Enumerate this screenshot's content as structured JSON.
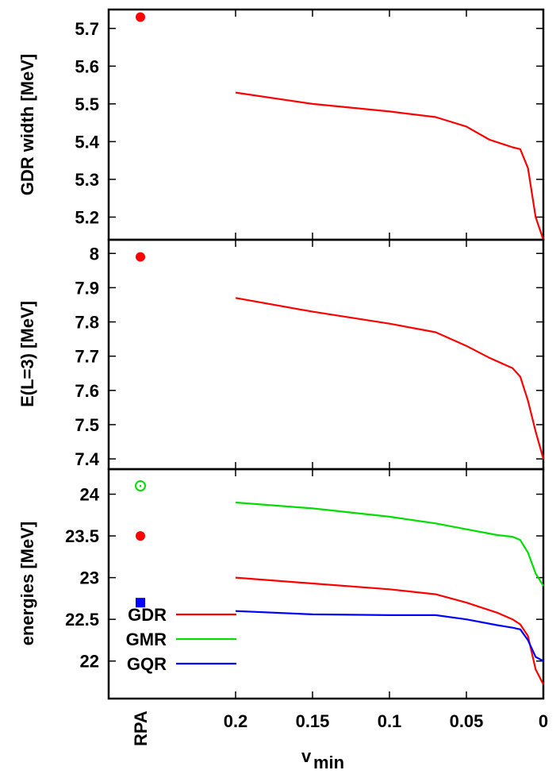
{
  "chart_data": [
    {
      "type": "line",
      "ylabel": "GDR width [MeV]",
      "ylim": [
        5.14,
        5.75
      ],
      "yticks": [
        5.2,
        5.3,
        5.4,
        5.5,
        5.6,
        5.7
      ],
      "xlim": [
        0.27,
        0
      ],
      "series": [
        {
          "color": "#ff0000",
          "x": [
            0.2,
            0.15,
            0.1,
            0.07,
            0.05,
            0.035,
            0.02,
            0.015,
            0.01,
            0.005,
            0.0
          ],
          "y": [
            5.53,
            5.5,
            5.48,
            5.465,
            5.44,
            5.405,
            5.385,
            5.38,
            5.33,
            5.2,
            5.14
          ]
        }
      ],
      "markers": [
        {
          "label": "RPA",
          "y": 5.73,
          "shape": "filled-circle",
          "color": "#ff0000"
        }
      ]
    },
    {
      "type": "line",
      "ylabel": "E(L=3) [MeV]",
      "ylim": [
        7.37,
        8.04
      ],
      "yticks": [
        7.4,
        7.5,
        7.6,
        7.7,
        7.8,
        7.9,
        8.0
      ],
      "ytick_labels": [
        "7.4",
        "7.5",
        "7.6",
        "7.7",
        "7.8",
        "7.9",
        "8"
      ],
      "xlim": [
        0.27,
        0
      ],
      "series": [
        {
          "color": "#ff0000",
          "x": [
            0.2,
            0.15,
            0.1,
            0.07,
            0.05,
            0.035,
            0.02,
            0.015,
            0.01,
            0.005,
            0.0
          ],
          "y": [
            7.87,
            7.83,
            7.795,
            7.77,
            7.73,
            7.695,
            7.665,
            7.64,
            7.57,
            7.48,
            7.4
          ]
        }
      ],
      "markers": [
        {
          "label": "RPA",
          "y": 7.99,
          "shape": "filled-circle",
          "color": "#ff0000"
        }
      ]
    },
    {
      "type": "line",
      "ylabel": "energies [MeV]",
      "ylim": [
        21.55,
        24.3
      ],
      "yticks": [
        22.0,
        22.5,
        23.0,
        23.5,
        24.0
      ],
      "ytick_labels": [
        "22",
        "22.5",
        "23",
        "23.5",
        "24"
      ],
      "xlim": [
        0.27,
        0
      ],
      "x_axis_ticks": [
        0.2,
        0.15,
        0.1,
        0.05,
        0
      ],
      "x_tick_labels": [
        "0.2",
        "0.15",
        "0.1",
        "0.05",
        "0"
      ],
      "x_extra_label": "RPA",
      "xlabel_main": "v",
      "xlabel_sub": "min",
      "series": [
        {
          "name": "GDR",
          "color": "#ff0000",
          "x": [
            0.2,
            0.15,
            0.1,
            0.07,
            0.05,
            0.03,
            0.02,
            0.015,
            0.01,
            0.005,
            0.0
          ],
          "y": [
            23.0,
            22.93,
            22.86,
            22.8,
            22.7,
            22.58,
            22.5,
            22.44,
            22.3,
            21.9,
            21.72
          ]
        },
        {
          "name": "GMR",
          "color": "#00dd00",
          "x": [
            0.2,
            0.15,
            0.1,
            0.07,
            0.05,
            0.03,
            0.02,
            0.015,
            0.01,
            0.005,
            0.0
          ],
          "y": [
            23.9,
            23.83,
            23.73,
            23.65,
            23.58,
            23.51,
            23.49,
            23.45,
            23.3,
            23.05,
            22.9
          ]
        },
        {
          "name": "GQR",
          "color": "#0000ff",
          "x": [
            0.2,
            0.15,
            0.1,
            0.07,
            0.05,
            0.03,
            0.02,
            0.015,
            0.01,
            0.005,
            0.0
          ],
          "y": [
            22.6,
            22.56,
            22.55,
            22.55,
            22.5,
            22.43,
            22.4,
            22.38,
            22.25,
            22.05,
            22.0
          ]
        }
      ],
      "markers": [
        {
          "label": "RPA",
          "y": 24.1,
          "shape": "open-circle",
          "color": "#00dd00"
        },
        {
          "label": "RPA",
          "y": 23.5,
          "shape": "filled-circle",
          "color": "#ff0000"
        },
        {
          "label": "RPA",
          "y": 22.7,
          "shape": "filled-square",
          "color": "#0000ff"
        }
      ],
      "legend": {
        "placement": "bottom-left"
      }
    }
  ]
}
